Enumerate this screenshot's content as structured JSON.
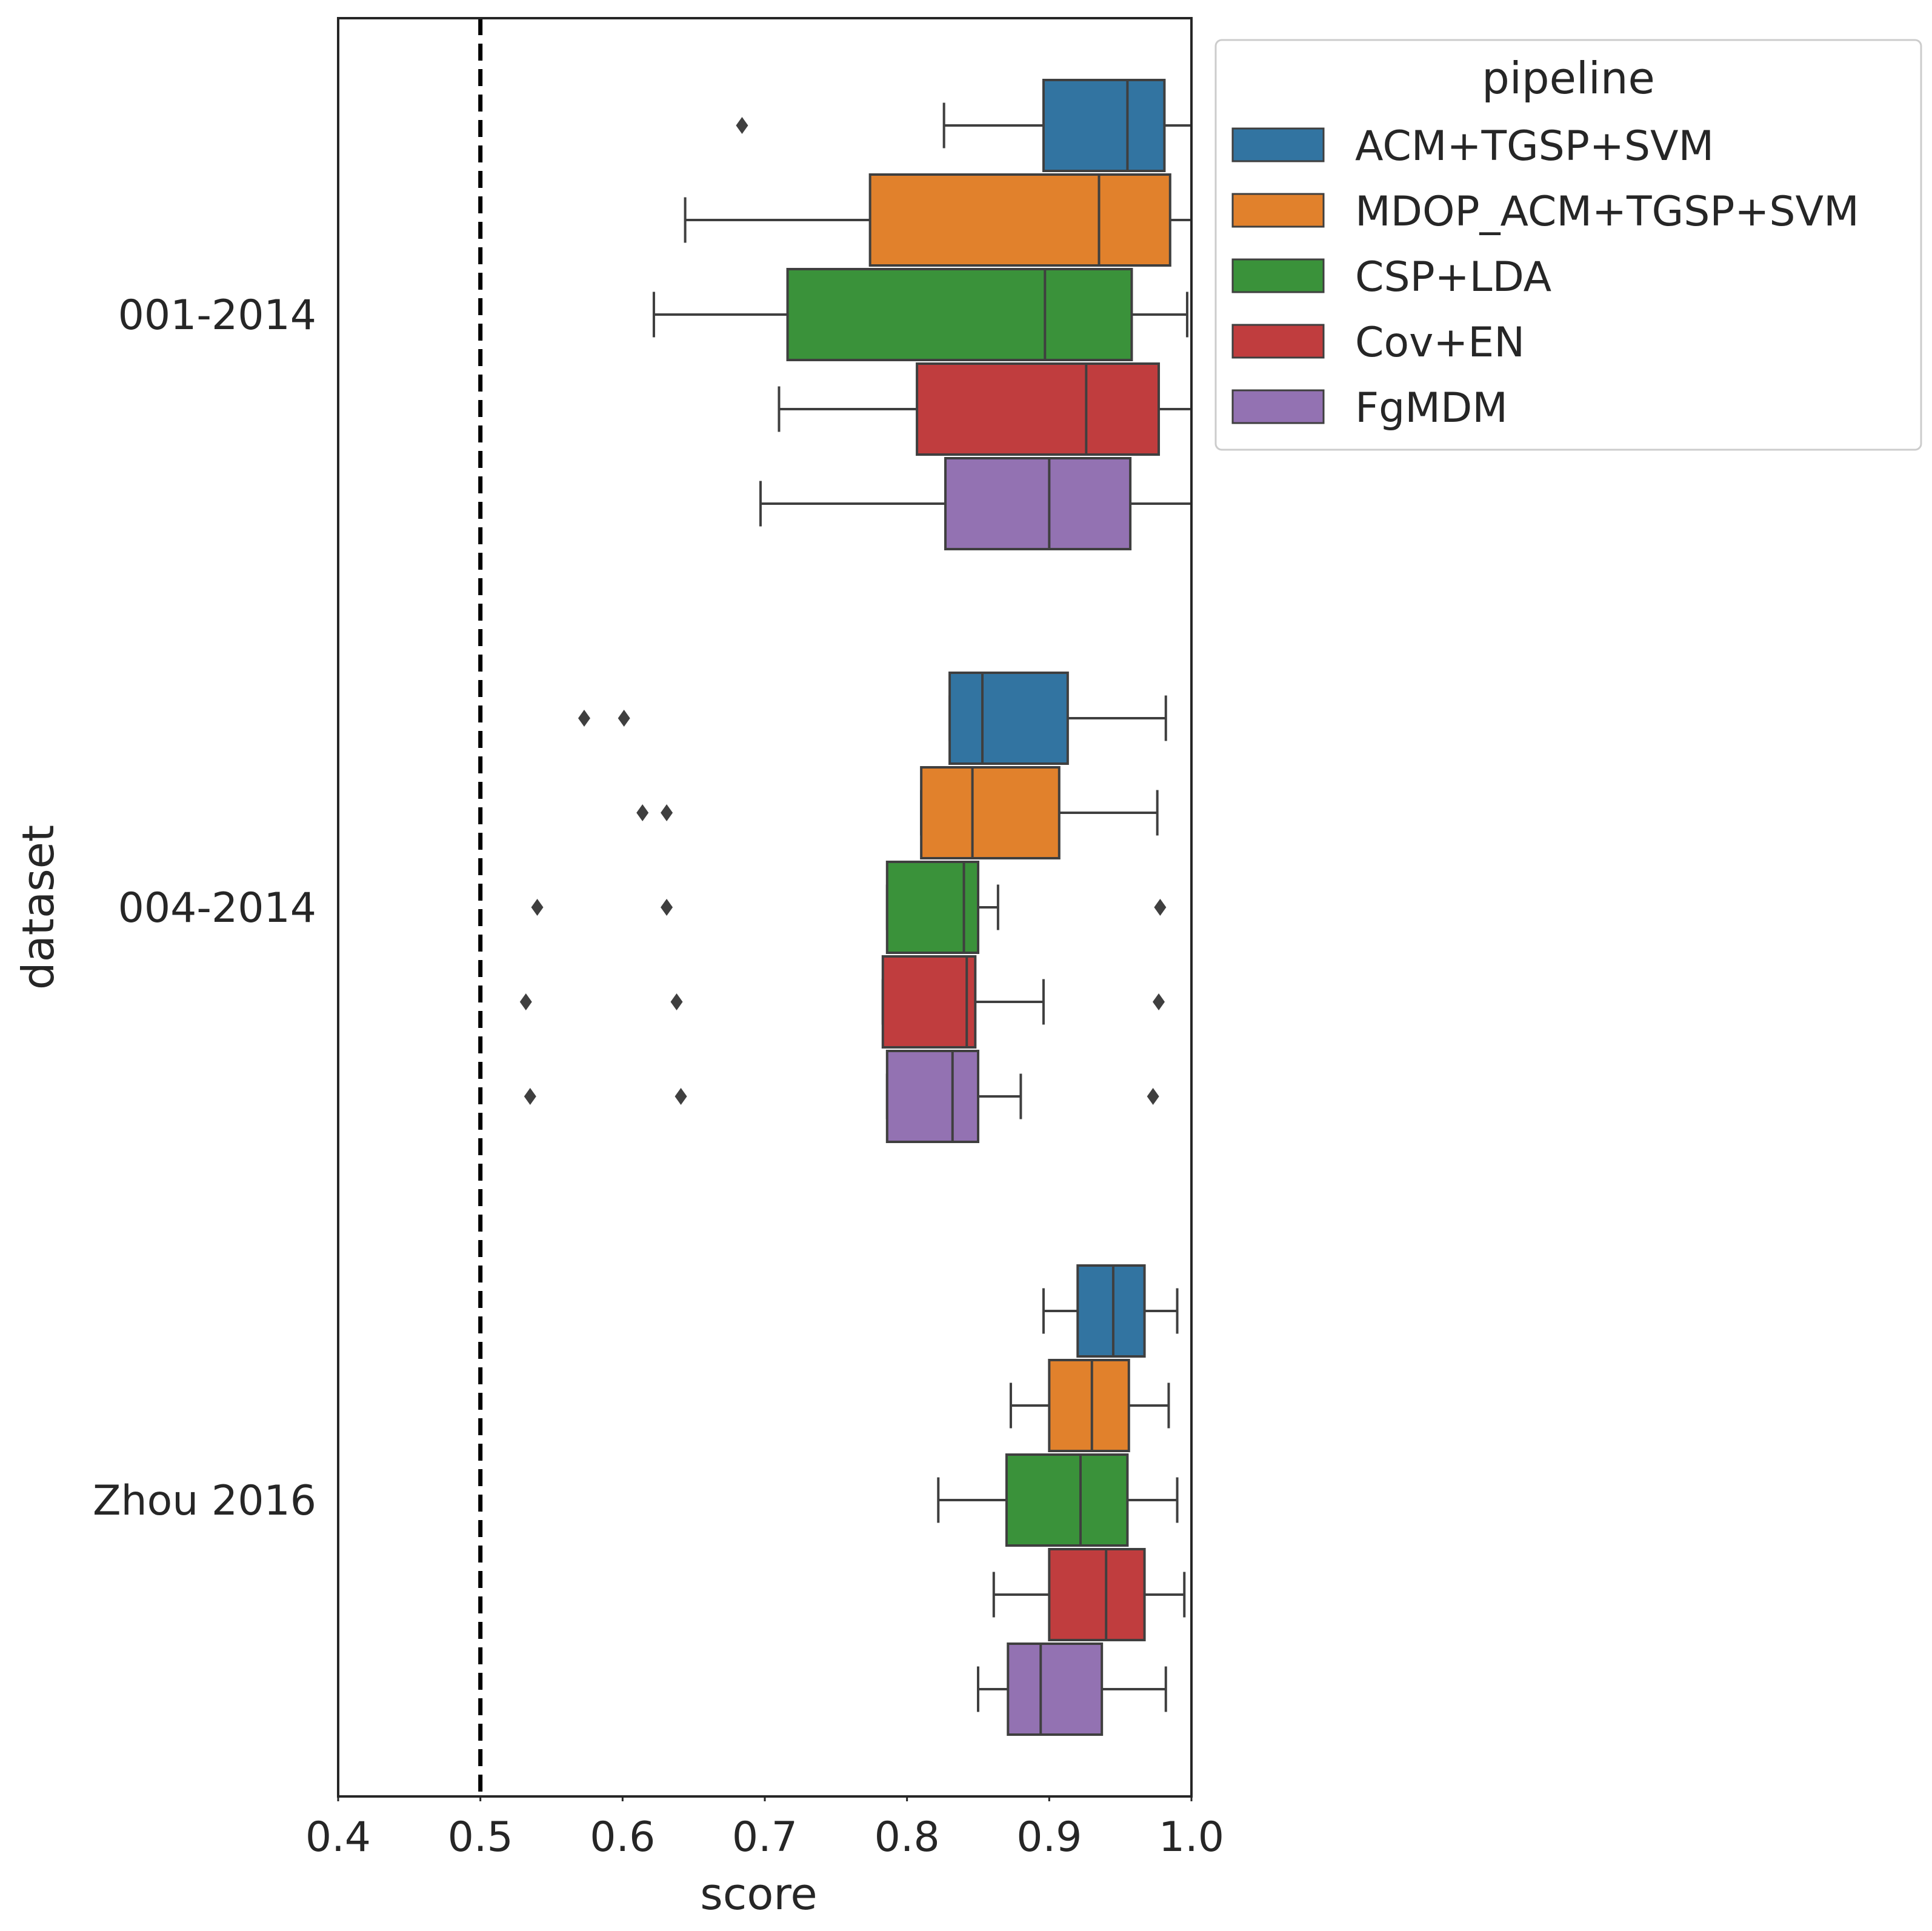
{
  "chart_data": {
    "type": "boxplot",
    "orientation": "horizontal",
    "xlabel": "score",
    "ylabel": "dataset",
    "xlim": [
      0.4,
      1.0
    ],
    "xticks": [
      "0.4",
      "0.5",
      "0.6",
      "0.7",
      "0.8",
      "0.9",
      "1.0"
    ],
    "categories": [
      "001-2014",
      "004-2014",
      "Zhou 2016"
    ],
    "reference_line": {
      "x": 0.5,
      "style": "dashed",
      "color": "#000000"
    },
    "legend": {
      "title": "pipeline",
      "placement": "upper-right-outside"
    },
    "grid": false,
    "series": [
      {
        "name": "ACM+TGSP+SVM",
        "color": "#3274a1",
        "boxes": [
          {
            "whislo": 0.826,
            "q1": 0.896,
            "med": 0.955,
            "q3": 0.981,
            "whishi": 1.0,
            "fliers": [
              0.684
            ]
          },
          {
            "whislo": 0.83,
            "q1": 0.83,
            "med": 0.853,
            "q3": 0.913,
            "whishi": 0.982,
            "fliers": [
              0.573,
              0.601
            ]
          },
          {
            "whislo": 0.896,
            "q1": 0.92,
            "med": 0.945,
            "q3": 0.967,
            "whishi": 0.99,
            "fliers": []
          }
        ]
      },
      {
        "name": "MDOP_ACM+TGSP+SVM",
        "color": "#e1812c",
        "boxes": [
          {
            "whislo": 0.644,
            "q1": 0.774,
            "med": 0.935,
            "q3": 0.985,
            "whishi": 1.0,
            "fliers": []
          },
          {
            "whislo": 0.81,
            "q1": 0.81,
            "med": 0.846,
            "q3": 0.907,
            "whishi": 0.976,
            "fliers": [
              0.614,
              0.631
            ]
          },
          {
            "whislo": 0.873,
            "q1": 0.9,
            "med": 0.93,
            "q3": 0.956,
            "whishi": 0.984,
            "fliers": []
          }
        ]
      },
      {
        "name": "CSP+LDA",
        "color": "#3a923a",
        "boxes": [
          {
            "whislo": 0.622,
            "q1": 0.716,
            "med": 0.897,
            "q3": 0.958,
            "whishi": 0.997,
            "fliers": []
          },
          {
            "whislo": 0.786,
            "q1": 0.786,
            "med": 0.84,
            "q3": 0.85,
            "whishi": 0.864,
            "fliers": [
              0.54,
              0.631,
              0.978
            ]
          },
          {
            "whislo": 0.822,
            "q1": 0.87,
            "med": 0.922,
            "q3": 0.955,
            "whishi": 0.99,
            "fliers": []
          }
        ]
      },
      {
        "name": "Cov+EN",
        "color": "#c03d3e",
        "boxes": [
          {
            "whislo": 0.71,
            "q1": 0.807,
            "med": 0.926,
            "q3": 0.977,
            "whishi": 1.0,
            "fliers": []
          },
          {
            "whislo": 0.783,
            "q1": 0.783,
            "med": 0.842,
            "q3": 0.848,
            "whishi": 0.896,
            "fliers": [
              0.532,
              0.638,
              0.977
            ]
          },
          {
            "whislo": 0.861,
            "q1": 0.9,
            "med": 0.94,
            "q3": 0.967,
            "whishi": 0.995,
            "fliers": []
          }
        ]
      },
      {
        "name": "FgMDM",
        "color": "#9372b2",
        "boxes": [
          {
            "whislo": 0.697,
            "q1": 0.827,
            "med": 0.9,
            "q3": 0.957,
            "whishi": 1.0,
            "fliers": []
          },
          {
            "whislo": 0.786,
            "q1": 0.786,
            "med": 0.832,
            "q3": 0.85,
            "whishi": 0.88,
            "fliers": [
              0.535,
              0.641,
              0.973
            ]
          },
          {
            "whislo": 0.85,
            "q1": 0.871,
            "med": 0.894,
            "q3": 0.937,
            "whishi": 0.982,
            "fliers": []
          }
        ]
      }
    ]
  }
}
